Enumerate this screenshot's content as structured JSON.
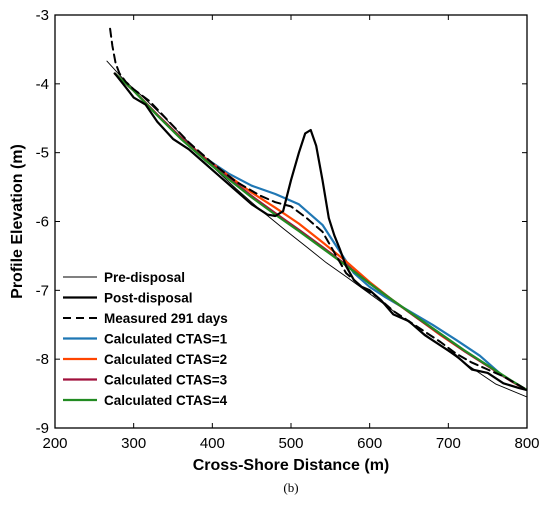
{
  "chart_data": {
    "type": "line",
    "title": "",
    "xlabel": "Cross-Shore Distance (m)",
    "ylabel": "Profile Elevation (m)",
    "xlim": [
      200,
      800
    ],
    "ylim": [
      -9,
      -3
    ],
    "xticks": [
      200,
      300,
      400,
      500,
      600,
      700,
      800
    ],
    "yticks": [
      -9,
      -8,
      -7,
      -6,
      -5,
      -4,
      -3
    ],
    "grid": false,
    "legend_position": "bottom-left",
    "panel_label": "(b)",
    "series": [
      {
        "name": "Pre-disposal",
        "color": "#000000",
        "style": "solid",
        "width": 0.9,
        "x": [
          266,
          290,
          310,
          340,
          370,
          400,
          430,
          460,
          490,
          520,
          545,
          570,
          600,
          640,
          680,
          720,
          760,
          800
        ],
        "y": [
          -3.67,
          -3.97,
          -4.17,
          -4.5,
          -4.85,
          -5.2,
          -5.52,
          -5.82,
          -6.1,
          -6.37,
          -6.6,
          -6.8,
          -7.05,
          -7.38,
          -7.72,
          -8.05,
          -8.36,
          -8.55
        ]
      },
      {
        "name": "Post-disposal",
        "color": "#000000",
        "style": "solid",
        "width": 2.2,
        "x": [
          276,
          290,
          300,
          315,
          330,
          350,
          370,
          390,
          410,
          430,
          450,
          470,
          480,
          490,
          500,
          510,
          518,
          525,
          532,
          540,
          548,
          555,
          562,
          570,
          580,
          590,
          600,
          615,
          630,
          650,
          670,
          690,
          710,
          730,
          750,
          770,
          790,
          800
        ],
        "y": [
          -3.85,
          -4.05,
          -4.2,
          -4.3,
          -4.55,
          -4.8,
          -4.95,
          -5.15,
          -5.35,
          -5.55,
          -5.75,
          -5.9,
          -5.92,
          -5.85,
          -5.4,
          -5.0,
          -4.72,
          -4.67,
          -4.9,
          -5.4,
          -5.95,
          -6.2,
          -6.4,
          -6.65,
          -6.85,
          -6.95,
          -7.0,
          -7.15,
          -7.35,
          -7.45,
          -7.65,
          -7.8,
          -7.95,
          -8.15,
          -8.2,
          -8.35,
          -8.42,
          -8.45
        ]
      },
      {
        "name": "Measured 291 days",
        "color": "#000000",
        "style": "dashed",
        "width": 2.0,
        "x": [
          270,
          273,
          277,
          282,
          290,
          300,
          320,
          345,
          370,
          400,
          430,
          460,
          480,
          500,
          520,
          540,
          555,
          570,
          590,
          610,
          630,
          650,
          670,
          690,
          710,
          730,
          750,
          770,
          790,
          800
        ],
        "y": [
          -3.2,
          -3.45,
          -3.7,
          -3.85,
          -3.97,
          -4.08,
          -4.25,
          -4.55,
          -4.85,
          -5.15,
          -5.42,
          -5.62,
          -5.72,
          -5.78,
          -5.95,
          -6.15,
          -6.45,
          -6.75,
          -6.95,
          -7.1,
          -7.3,
          -7.45,
          -7.6,
          -7.75,
          -7.92,
          -8.05,
          -8.15,
          -8.25,
          -8.38,
          -8.45
        ]
      },
      {
        "name": "Calculated CTAS=1",
        "color": "#1f77b4",
        "style": "solid",
        "width": 2.2,
        "x": [
          276,
          300,
          330,
          360,
          390,
          420,
          450,
          480,
          510,
          540,
          560,
          580,
          600,
          620,
          650,
          680,
          710,
          740,
          770,
          800
        ],
        "y": [
          -3.85,
          -4.1,
          -4.45,
          -4.78,
          -5.07,
          -5.3,
          -5.48,
          -5.6,
          -5.75,
          -6.05,
          -6.4,
          -6.75,
          -6.95,
          -7.1,
          -7.3,
          -7.5,
          -7.72,
          -7.95,
          -8.25,
          -8.45
        ]
      },
      {
        "name": "Calculated CTAS=2",
        "color": "#ff4500",
        "style": "solid",
        "width": 2.2,
        "x": [
          276,
          300,
          330,
          360,
          390,
          420,
          450,
          480,
          510,
          540,
          570,
          600,
          630,
          660,
          690,
          720,
          750,
          780,
          800
        ],
        "y": [
          -3.85,
          -4.1,
          -4.45,
          -4.78,
          -5.07,
          -5.33,
          -5.58,
          -5.8,
          -6.03,
          -6.3,
          -6.58,
          -6.88,
          -7.15,
          -7.4,
          -7.65,
          -7.88,
          -8.1,
          -8.32,
          -8.45
        ]
      },
      {
        "name": "Calculated CTAS=3",
        "color": "#a0103c",
        "style": "solid",
        "width": 2.2,
        "x": [
          276,
          300,
          330,
          360,
          390,
          420,
          450,
          480,
          510,
          540,
          570,
          600,
          630,
          660,
          690,
          720,
          750,
          780,
          800
        ],
        "y": [
          -3.85,
          -4.1,
          -4.45,
          -4.78,
          -5.08,
          -5.36,
          -5.63,
          -5.88,
          -6.12,
          -6.37,
          -6.63,
          -6.9,
          -7.15,
          -7.4,
          -7.64,
          -7.88,
          -8.1,
          -8.32,
          -8.45
        ]
      },
      {
        "name": "Calculated CTAS=4",
        "color": "#228b22",
        "style": "solid",
        "width": 2.2,
        "x": [
          276,
          300,
          330,
          360,
          390,
          420,
          450,
          480,
          510,
          540,
          570,
          600,
          630,
          660,
          690,
          720,
          750,
          780,
          800
        ],
        "y": [
          -3.85,
          -4.1,
          -4.46,
          -4.8,
          -5.1,
          -5.38,
          -5.65,
          -5.9,
          -6.14,
          -6.39,
          -6.64,
          -6.9,
          -7.15,
          -7.39,
          -7.63,
          -7.87,
          -8.09,
          -8.31,
          -8.45
        ]
      }
    ]
  }
}
